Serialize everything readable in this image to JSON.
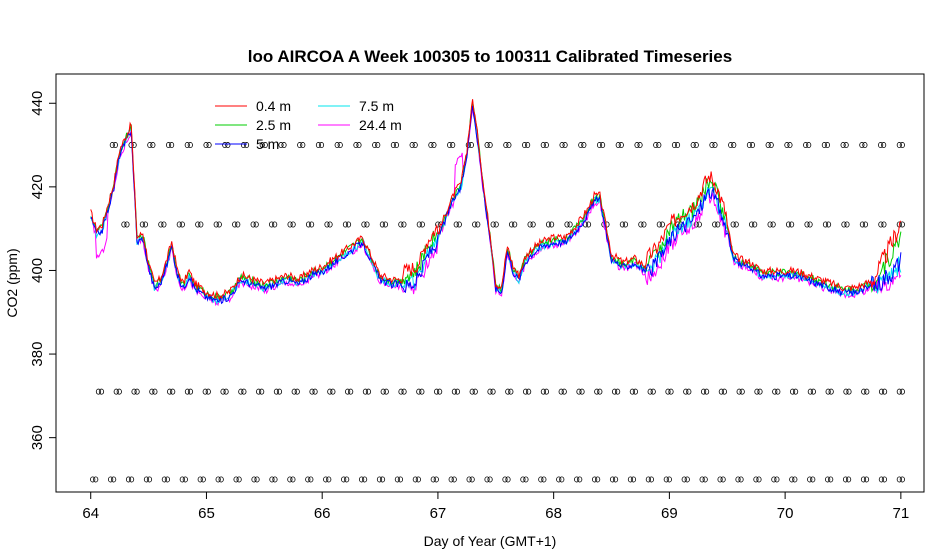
{
  "chart_data": {
    "type": "line",
    "title": "loo AIRCOA A  Week 100305 to 100311  Calibrated Timeseries",
    "xlabel": "Day of Year (GMT+1)",
    "ylabel": "CO2 (ppm)",
    "xlim": [
      63.7,
      71.2
    ],
    "ylim": [
      347,
      447
    ],
    "x_ticks": [
      64,
      65,
      66,
      67,
      68,
      69,
      70,
      71
    ],
    "y_ticks": [
      360,
      380,
      400,
      420,
      440
    ],
    "grid": false,
    "legend": {
      "placement": "top-left",
      "columns": 2,
      "entries": [
        {
          "name": "0.4 m",
          "color": "#ff0000"
        },
        {
          "name": "2.5 m",
          "color": "#00cd00"
        },
        {
          "name": "5 m",
          "color": "#0000ff"
        },
        {
          "name": "7.5 m",
          "color": "#00e5ee"
        },
        {
          "name": "24.4 m",
          "color": "#ff00ff"
        }
      ]
    },
    "colors": {
      "0.4 m": "#ff0000",
      "2.5 m": "#00cd00",
      "5 m": "#0000ff",
      "7.5 m": "#00e5ee",
      "24.4 m": "#ff00ff",
      "markers": "#000000"
    },
    "base_series": {
      "x": [
        64.0,
        64.05,
        64.1,
        64.15,
        64.2,
        64.25,
        64.3,
        64.35,
        64.4,
        64.45,
        64.5,
        64.55,
        64.6,
        64.65,
        64.7,
        64.75,
        64.8,
        64.85,
        64.9,
        64.95,
        65.0,
        65.1,
        65.2,
        65.3,
        65.4,
        65.5,
        65.6,
        65.7,
        65.8,
        65.9,
        66.0,
        66.1,
        66.2,
        66.3,
        66.35,
        66.4,
        66.5,
        66.6,
        66.7,
        66.8,
        66.85,
        66.9,
        67.0,
        67.1,
        67.15,
        67.2,
        67.25,
        67.3,
        67.35,
        67.4,
        67.45,
        67.5,
        67.55,
        67.6,
        67.65,
        67.7,
        67.75,
        67.8,
        67.9,
        68.0,
        68.1,
        68.2,
        68.3,
        68.35,
        68.4,
        68.45,
        68.5,
        68.6,
        68.7,
        68.8,
        68.9,
        69.0,
        69.1,
        69.2,
        69.25,
        69.3,
        69.35,
        69.4,
        69.45,
        69.5,
        69.55,
        69.6,
        69.7,
        69.8,
        69.9,
        70.0,
        70.1,
        70.2,
        70.3,
        70.4,
        70.5,
        70.6,
        70.7,
        70.8,
        70.9,
        70.95,
        71.0
      ],
      "y": [
        413,
        409,
        410,
        415,
        420,
        428,
        431,
        434,
        407,
        408,
        401,
        396,
        397,
        401,
        406,
        399,
        396,
        399,
        396,
        395,
        394,
        393,
        394,
        398,
        397,
        396,
        397,
        398,
        397,
        399,
        400,
        402,
        404,
        406,
        407,
        404,
        398,
        397,
        397,
        398,
        400,
        404,
        408,
        415,
        418,
        420,
        428,
        440,
        430,
        418,
        408,
        396,
        395,
        405,
        400,
        398,
        402,
        404,
        406,
        407,
        407,
        410,
        414,
        417,
        417,
        410,
        403,
        401,
        402,
        400,
        403,
        408,
        411,
        413,
        415,
        418,
        420,
        418,
        414,
        410,
        403,
        402,
        401,
        399,
        399,
        399,
        399,
        398,
        397,
        396,
        395,
        395,
        396,
        397,
        399,
        400,
        402
      ]
    },
    "series_offsets": [
      {
        "name": "0.4 m",
        "offset_ppm": 1.5,
        "end_excursion_ppm": 9
      },
      {
        "name": "2.5 m",
        "offset_ppm": 0.8,
        "end_excursion_ppm": 6
      },
      {
        "name": "5 m",
        "offset_ppm": -0.5,
        "end_excursion_ppm": 1
      },
      {
        "name": "7.5 m",
        "offset_ppm": -0.3,
        "end_excursion_ppm": 0
      },
      {
        "name": "24.4 m",
        "offset_ppm": -1.2,
        "end_excursion_ppm": -1
      }
    ],
    "marker_rows": [
      {
        "y": 430,
        "x_start": 64.2,
        "count": 43
      },
      {
        "y": 411,
        "x_start": 64.3,
        "count": 43
      },
      {
        "y": 371,
        "x_start": 64.08,
        "count": 46
      },
      {
        "y": 350,
        "x_start": 64.03,
        "count": 46
      }
    ]
  }
}
